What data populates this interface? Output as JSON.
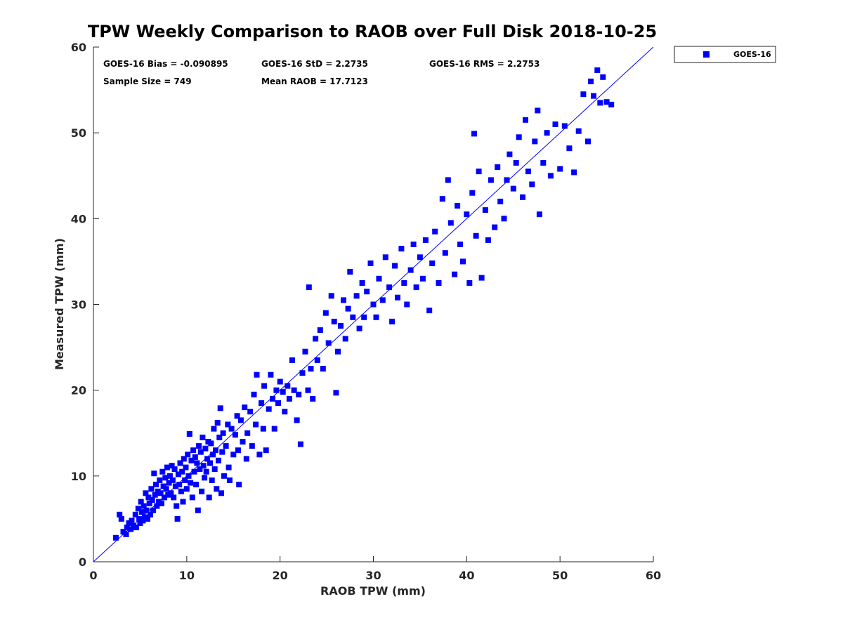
{
  "chart_data": {
    "type": "scatter",
    "title": "TPW Weekly Comparison to RAOB over Full Disk 2018-10-25",
    "xlabel": "RAOB TPW (mm)",
    "ylabel": "Measured TPW (mm)",
    "xlim": [
      0,
      60
    ],
    "ylim": [
      0,
      60
    ],
    "xticks": [
      0,
      10,
      20,
      30,
      40,
      50,
      60
    ],
    "yticks": [
      0,
      10,
      20,
      30,
      40,
      50,
      60
    ],
    "grid": false,
    "legend_position": "outside-top-right",
    "reference_line": {
      "x": [
        0,
        60
      ],
      "y": [
        0,
        60
      ]
    },
    "annotations": {
      "bias": "GOES-16 Bias = -0.090895",
      "std": "GOES-16 StD = 2.2735",
      "rms": "GOES-16 RMS = 2.2753",
      "sample_size": "Sample Size = 749",
      "mean_raob": "Mean RAOB = 17.7123"
    },
    "series": [
      {
        "name": "GOES-16",
        "color": "#0000ff",
        "marker": "square",
        "points": [
          [
            2.4,
            2.8
          ],
          [
            2.8,
            5.5
          ],
          [
            3.0,
            5.0
          ],
          [
            3.2,
            3.5
          ],
          [
            3.5,
            3.2
          ],
          [
            3.6,
            4.0
          ],
          [
            3.8,
            4.5
          ],
          [
            4.0,
            3.8
          ],
          [
            4.1,
            4.8
          ],
          [
            4.3,
            4.2
          ],
          [
            4.5,
            5.5
          ],
          [
            4.6,
            4.0
          ],
          [
            4.8,
            6.2
          ],
          [
            4.9,
            5.0
          ],
          [
            5.0,
            4.5
          ],
          [
            5.1,
            7.0
          ],
          [
            5.2,
            5.8
          ],
          [
            5.3,
            4.8
          ],
          [
            5.4,
            6.5
          ],
          [
            5.5,
            5.2
          ],
          [
            5.6,
            8.0
          ],
          [
            5.7,
            6.0
          ],
          [
            5.8,
            5.0
          ],
          [
            5.9,
            7.5
          ],
          [
            6.0,
            6.8
          ],
          [
            6.1,
            5.5
          ],
          [
            6.2,
            8.5
          ],
          [
            6.3,
            7.2
          ],
          [
            6.4,
            6.0
          ],
          [
            6.5,
            10.3
          ],
          [
            6.6,
            7.8
          ],
          [
            6.7,
            9.0
          ],
          [
            6.8,
            6.5
          ],
          [
            6.9,
            8.2
          ],
          [
            7.0,
            7.0
          ],
          [
            7.1,
            9.5
          ],
          [
            7.2,
            8.0
          ],
          [
            7.3,
            6.8
          ],
          [
            7.4,
            10.5
          ],
          [
            7.5,
            8.8
          ],
          [
            7.6,
            7.5
          ],
          [
            7.7,
            9.8
          ],
          [
            7.8,
            8.5
          ],
          [
            7.9,
            11.0
          ],
          [
            8.0,
            7.8
          ],
          [
            8.1,
            9.2
          ],
          [
            8.2,
            10.0
          ],
          [
            8.3,
            8.0
          ],
          [
            8.4,
            11.2
          ],
          [
            8.5,
            9.5
          ],
          [
            8.6,
            7.5
          ],
          [
            8.7,
            10.8
          ],
          [
            8.8,
            8.8
          ],
          [
            8.9,
            6.5
          ],
          [
            9.0,
            5.0
          ],
          [
            9.1,
            10.2
          ],
          [
            9.2,
            9.0
          ],
          [
            9.3,
            11.5
          ],
          [
            9.4,
            8.2
          ],
          [
            9.5,
            10.5
          ],
          [
            9.6,
            7.0
          ],
          [
            9.7,
            12.0
          ],
          [
            9.8,
            9.5
          ],
          [
            9.9,
            11.0
          ],
          [
            10.0,
            8.5
          ],
          [
            10.1,
            12.5
          ],
          [
            10.2,
            10.0
          ],
          [
            10.3,
            14.9
          ],
          [
            10.4,
            9.2
          ],
          [
            10.5,
            11.8
          ],
          [
            10.6,
            7.5
          ],
          [
            10.7,
            13.0
          ],
          [
            10.8,
            10.5
          ],
          [
            10.9,
            12.2
          ],
          [
            11.0,
            9.0
          ],
          [
            11.1,
            11.5
          ],
          [
            11.2,
            6.0
          ],
          [
            11.3,
            13.5
          ],
          [
            11.4,
            10.8
          ],
          [
            11.5,
            12.8
          ],
          [
            11.6,
            8.2
          ],
          [
            11.7,
            14.5
          ],
          [
            11.8,
            11.2
          ],
          [
            11.9,
            9.8
          ],
          [
            12.0,
            13.2
          ],
          [
            12.1,
            10.5
          ],
          [
            12.2,
            12.0
          ],
          [
            12.3,
            14.0
          ],
          [
            12.4,
            7.5
          ],
          [
            12.5,
            11.5
          ],
          [
            12.6,
            13.8
          ],
          [
            12.7,
            9.5
          ],
          [
            12.8,
            12.5
          ],
          [
            12.9,
            15.5
          ],
          [
            13.0,
            10.8
          ],
          [
            13.1,
            13.0
          ],
          [
            13.2,
            8.5
          ],
          [
            13.3,
            16.2
          ],
          [
            13.4,
            11.8
          ],
          [
            13.5,
            14.5
          ],
          [
            13.6,
            17.9
          ],
          [
            13.7,
            8.0
          ],
          [
            13.8,
            12.8
          ],
          [
            13.9,
            15.0
          ],
          [
            14.0,
            10.0
          ],
          [
            14.2,
            13.5
          ],
          [
            14.4,
            16.0
          ],
          [
            14.5,
            11.0
          ],
          [
            14.6,
            9.5
          ],
          [
            14.8,
            15.5
          ],
          [
            15.0,
            12.5
          ],
          [
            15.2,
            14.8
          ],
          [
            15.4,
            17.0
          ],
          [
            15.5,
            13.0
          ],
          [
            15.6,
            9.0
          ],
          [
            15.8,
            16.5
          ],
          [
            16.0,
            14.0
          ],
          [
            16.2,
            18.0
          ],
          [
            16.4,
            12.0
          ],
          [
            16.5,
            15.0
          ],
          [
            16.8,
            17.5
          ],
          [
            17.0,
            13.5
          ],
          [
            17.2,
            19.5
          ],
          [
            17.4,
            16.0
          ],
          [
            17.5,
            21.8
          ],
          [
            17.8,
            12.5
          ],
          [
            18.0,
            18.5
          ],
          [
            18.2,
            15.5
          ],
          [
            18.3,
            20.5
          ],
          [
            18.5,
            13.0
          ],
          [
            18.8,
            17.8
          ],
          [
            19.0,
            21.8
          ],
          [
            19.2,
            19.0
          ],
          [
            19.4,
            15.5
          ],
          [
            19.6,
            20.0
          ],
          [
            19.8,
            18.5
          ],
          [
            20.0,
            21.0
          ],
          [
            20.3,
            19.8
          ],
          [
            20.5,
            17.5
          ],
          [
            20.8,
            20.5
          ],
          [
            21.0,
            19.0
          ],
          [
            21.3,
            23.5
          ],
          [
            21.5,
            20.0
          ],
          [
            21.8,
            16.5
          ],
          [
            22.0,
            19.5
          ],
          [
            22.2,
            13.7
          ],
          [
            22.4,
            22.0
          ],
          [
            22.7,
            24.5
          ],
          [
            23.0,
            20.0
          ],
          [
            23.1,
            32.0
          ],
          [
            23.3,
            22.5
          ],
          [
            23.5,
            19.0
          ],
          [
            23.8,
            26.0
          ],
          [
            24.0,
            23.5
          ],
          [
            24.3,
            27.0
          ],
          [
            24.6,
            22.5
          ],
          [
            24.9,
            29.0
          ],
          [
            25.2,
            25.5
          ],
          [
            25.5,
            31.0
          ],
          [
            25.8,
            28.0
          ],
          [
            26.0,
            19.7
          ],
          [
            26.2,
            24.5
          ],
          [
            26.5,
            27.5
          ],
          [
            26.8,
            30.5
          ],
          [
            27.0,
            26.0
          ],
          [
            27.3,
            29.5
          ],
          [
            27.5,
            33.8
          ],
          [
            27.8,
            28.5
          ],
          [
            28.2,
            31.0
          ],
          [
            28.5,
            27.2
          ],
          [
            28.8,
            32.5
          ],
          [
            29.0,
            28.5
          ],
          [
            29.3,
            31.5
          ],
          [
            29.7,
            34.8
          ],
          [
            30.0,
            30.0
          ],
          [
            30.3,
            28.5
          ],
          [
            30.6,
            33.0
          ],
          [
            31.0,
            30.5
          ],
          [
            31.3,
            35.5
          ],
          [
            31.7,
            32.0
          ],
          [
            32.0,
            28.0
          ],
          [
            32.3,
            34.5
          ],
          [
            32.6,
            30.8
          ],
          [
            33.0,
            36.5
          ],
          [
            33.3,
            32.5
          ],
          [
            33.6,
            30.0
          ],
          [
            34.0,
            34.0
          ],
          [
            34.3,
            37.0
          ],
          [
            34.6,
            32.0
          ],
          [
            35.0,
            35.5
          ],
          [
            35.3,
            33.0
          ],
          [
            35.6,
            37.5
          ],
          [
            36.0,
            29.3
          ],
          [
            36.3,
            34.8
          ],
          [
            36.6,
            38.5
          ],
          [
            37.0,
            32.5
          ],
          [
            37.4,
            42.3
          ],
          [
            37.7,
            36.0
          ],
          [
            38.0,
            44.5
          ],
          [
            38.3,
            39.5
          ],
          [
            38.7,
            33.5
          ],
          [
            39.0,
            41.5
          ],
          [
            39.3,
            37.0
          ],
          [
            39.6,
            35.0
          ],
          [
            40.0,
            40.5
          ],
          [
            40.3,
            32.5
          ],
          [
            40.6,
            43.0
          ],
          [
            40.8,
            49.9
          ],
          [
            41.0,
            38.0
          ],
          [
            41.3,
            45.5
          ],
          [
            41.6,
            33.1
          ],
          [
            42.0,
            41.0
          ],
          [
            42.3,
            37.5
          ],
          [
            42.6,
            44.5
          ],
          [
            43.0,
            39.0
          ],
          [
            43.3,
            46.0
          ],
          [
            43.6,
            42.0
          ],
          [
            44.0,
            40.0
          ],
          [
            44.3,
            44.5
          ],
          [
            44.6,
            47.5
          ],
          [
            45.0,
            43.5
          ],
          [
            45.3,
            46.5
          ],
          [
            45.6,
            49.5
          ],
          [
            46.0,
            42.5
          ],
          [
            46.3,
            51.5
          ],
          [
            46.6,
            45.5
          ],
          [
            47.0,
            44.0
          ],
          [
            47.3,
            49.0
          ],
          [
            47.6,
            52.6
          ],
          [
            47.8,
            40.5
          ],
          [
            48.2,
            46.5
          ],
          [
            48.6,
            50.0
          ],
          [
            49.0,
            45.0
          ],
          [
            49.5,
            51.0
          ],
          [
            50.0,
            45.8
          ],
          [
            50.5,
            50.8
          ],
          [
            51.0,
            48.2
          ],
          [
            51.5,
            45.4
          ],
          [
            52.0,
            50.2
          ],
          [
            52.5,
            54.5
          ],
          [
            53.0,
            49.0
          ],
          [
            53.3,
            56.0
          ],
          [
            53.6,
            54.3
          ],
          [
            54.0,
            57.3
          ],
          [
            54.3,
            53.5
          ],
          [
            54.6,
            56.5
          ],
          [
            55.0,
            53.6
          ],
          [
            55.5,
            53.3
          ]
        ]
      }
    ]
  }
}
